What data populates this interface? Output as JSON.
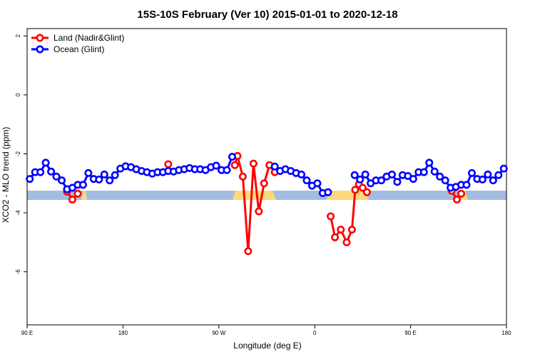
{
  "chart_data": {
    "type": "line",
    "title": "15S-10S February (Ver 10)   2015-01-01 to 2020-12-18",
    "x_label": "Longitude (deg E)",
    "y_label": "XCO2 - MLO trend (ppm)",
    "xlim": [
      90,
      540
    ],
    "xticks": [
      {
        "value": 90,
        "label": "90 E"
      },
      {
        "value": 180,
        "label": "180"
      },
      {
        "value": 270,
        "label": "90 W"
      },
      {
        "value": 360,
        "label": "0"
      },
      {
        "value": 450,
        "label": "90 E"
      },
      {
        "value": 540,
        "label": "180"
      }
    ],
    "ylim": [
      -7.8,
      2.25
    ],
    "yticks": [
      2,
      0,
      -2,
      -4,
      -6
    ],
    "legend": "top-left",
    "series": [
      {
        "name": "Land (Nadir&Glint)",
        "color": "#ff0000",
        "x": [
          127.5,
          132.5,
          137.5,
          180,
          222.5,
          250,
          285,
          287.5,
          292.5,
          297.5,
          302.5,
          307.5,
          312.5,
          317.5,
          322.5,
          350,
          375,
          379,
          384.5,
          390,
          395,
          398,
          401.5,
          405,
          409,
          450,
          488.5,
          493.5,
          497.5
        ],
        "values": [
          -3.28,
          -3.55,
          -3.35,
          null,
          -2.35,
          null,
          -2.38,
          -2.07,
          -2.77,
          -5.3,
          -2.33,
          -3.95,
          -3.0,
          -2.38,
          -2.62,
          null,
          -4.12,
          -4.83,
          -4.57,
          -5.0,
          -4.57,
          -3.22,
          -3.03,
          -3.15,
          -3.3,
          null,
          -3.25,
          -3.55,
          -3.35
        ]
      },
      {
        "name": "Ocean (Glint)",
        "color": "#0000ff",
        "x": [
          92.5,
          97.5,
          102.5,
          107.5,
          112.5,
          117.5,
          122.5,
          127.5,
          132.5,
          137.5,
          142.5,
          147.5,
          152.5,
          157.5,
          162.5,
          167.5,
          172.5,
          177.5,
          182.5,
          187.5,
          192.5,
          197.5,
          202.5,
          207.5,
          212.5,
          217.5,
          222.5,
          227.5,
          232.5,
          237.5,
          242.5,
          247.5,
          252.5,
          257.5,
          262.5,
          267.5,
          272.5,
          277.5,
          282.5,
          300,
          322.5,
          327.5,
          332.5,
          337.5,
          342.5,
          347.5,
          352.5,
          357.5,
          362.5,
          367.5,
          372.5,
          385,
          397.5,
          402.5,
          407.5,
          412.5,
          417.5,
          422.5,
          427.5,
          432.5,
          437.5,
          442.5,
          447.5,
          452.5,
          457.5,
          462.5,
          467.5,
          472.5,
          477.5,
          482.5,
          487.5,
          492.5,
          497.5,
          502.5,
          507.5,
          512.5,
          517.5,
          522.5,
          527.5,
          532.5,
          537.5
        ],
        "values": [
          -2.85,
          -2.62,
          -2.62,
          -2.3,
          -2.6,
          -2.77,
          -2.9,
          -3.2,
          -3.15,
          -3.05,
          -3.05,
          -2.65,
          -2.85,
          -2.87,
          -2.7,
          -2.9,
          -2.72,
          -2.5,
          -2.42,
          -2.45,
          -2.52,
          -2.58,
          -2.62,
          -2.67,
          -2.62,
          -2.62,
          -2.58,
          -2.6,
          -2.55,
          -2.52,
          -2.48,
          -2.52,
          -2.52,
          -2.55,
          -2.45,
          -2.4,
          -2.55,
          -2.55,
          -2.1,
          null,
          -2.43,
          -2.58,
          -2.52,
          -2.58,
          -2.65,
          -2.7,
          -2.9,
          -3.08,
          -3.0,
          -3.33,
          -3.3,
          null,
          -2.72,
          -2.87,
          -2.7,
          -3.0,
          -2.9,
          -2.9,
          -2.77,
          -2.7,
          -2.95,
          -2.72,
          -2.75,
          -2.85,
          -2.62,
          -2.62,
          -2.3,
          -2.6,
          -2.77,
          -2.9,
          -3.15,
          -3.12,
          -3.05,
          -3.05,
          -2.65,
          -2.85,
          -2.87,
          -2.7,
          -2.9,
          -2.72,
          -2.5
        ]
      }
    ]
  }
}
